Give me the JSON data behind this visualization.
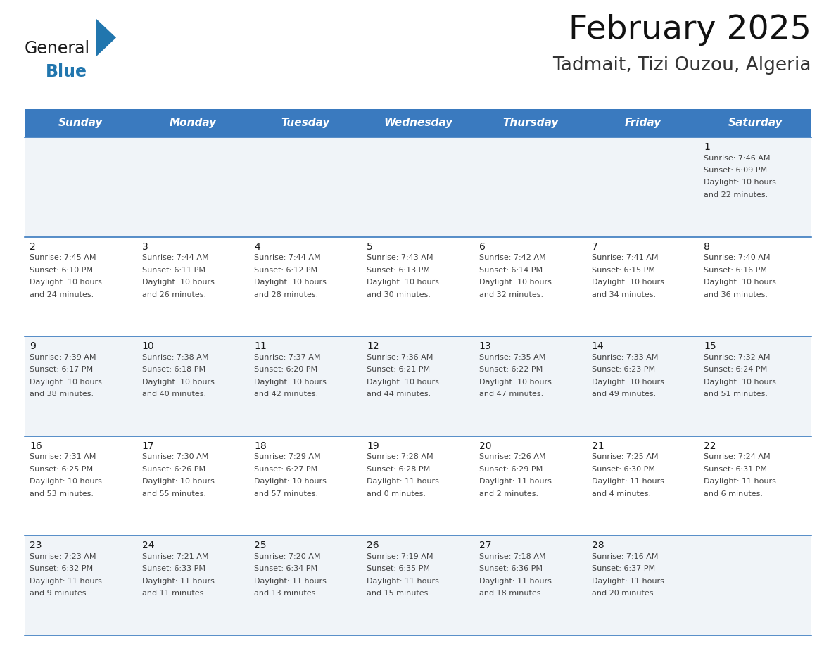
{
  "title": "February 2025",
  "subtitle": "Tadmait, Tizi Ouzou, Algeria",
  "header_color": "#3a7abf",
  "header_text_color": "#ffffff",
  "cell_bg_light": "#f0f4f8",
  "cell_bg_white": "#ffffff",
  "cell_border_color": "#3a7abf",
  "day_names": [
    "Sunday",
    "Monday",
    "Tuesday",
    "Wednesday",
    "Thursday",
    "Friday",
    "Saturday"
  ],
  "days": [
    {
      "day": 1,
      "col": 6,
      "row": 0,
      "sunrise": "7:46 AM",
      "sunset": "6:09 PM",
      "daylight": "10 hours",
      "daylight2": "and 22 minutes."
    },
    {
      "day": 2,
      "col": 0,
      "row": 1,
      "sunrise": "7:45 AM",
      "sunset": "6:10 PM",
      "daylight": "10 hours",
      "daylight2": "and 24 minutes."
    },
    {
      "day": 3,
      "col": 1,
      "row": 1,
      "sunrise": "7:44 AM",
      "sunset": "6:11 PM",
      "daylight": "10 hours",
      "daylight2": "and 26 minutes."
    },
    {
      "day": 4,
      "col": 2,
      "row": 1,
      "sunrise": "7:44 AM",
      "sunset": "6:12 PM",
      "daylight": "10 hours",
      "daylight2": "and 28 minutes."
    },
    {
      "day": 5,
      "col": 3,
      "row": 1,
      "sunrise": "7:43 AM",
      "sunset": "6:13 PM",
      "daylight": "10 hours",
      "daylight2": "and 30 minutes."
    },
    {
      "day": 6,
      "col": 4,
      "row": 1,
      "sunrise": "7:42 AM",
      "sunset": "6:14 PM",
      "daylight": "10 hours",
      "daylight2": "and 32 minutes."
    },
    {
      "day": 7,
      "col": 5,
      "row": 1,
      "sunrise": "7:41 AM",
      "sunset": "6:15 PM",
      "daylight": "10 hours",
      "daylight2": "and 34 minutes."
    },
    {
      "day": 8,
      "col": 6,
      "row": 1,
      "sunrise": "7:40 AM",
      "sunset": "6:16 PM",
      "daylight": "10 hours",
      "daylight2": "and 36 minutes."
    },
    {
      "day": 9,
      "col": 0,
      "row": 2,
      "sunrise": "7:39 AM",
      "sunset": "6:17 PM",
      "daylight": "10 hours",
      "daylight2": "and 38 minutes."
    },
    {
      "day": 10,
      "col": 1,
      "row": 2,
      "sunrise": "7:38 AM",
      "sunset": "6:18 PM",
      "daylight": "10 hours",
      "daylight2": "and 40 minutes."
    },
    {
      "day": 11,
      "col": 2,
      "row": 2,
      "sunrise": "7:37 AM",
      "sunset": "6:20 PM",
      "daylight": "10 hours",
      "daylight2": "and 42 minutes."
    },
    {
      "day": 12,
      "col": 3,
      "row": 2,
      "sunrise": "7:36 AM",
      "sunset": "6:21 PM",
      "daylight": "10 hours",
      "daylight2": "and 44 minutes."
    },
    {
      "day": 13,
      "col": 4,
      "row": 2,
      "sunrise": "7:35 AM",
      "sunset": "6:22 PM",
      "daylight": "10 hours",
      "daylight2": "and 47 minutes."
    },
    {
      "day": 14,
      "col": 5,
      "row": 2,
      "sunrise": "7:33 AM",
      "sunset": "6:23 PM",
      "daylight": "10 hours",
      "daylight2": "and 49 minutes."
    },
    {
      "day": 15,
      "col": 6,
      "row": 2,
      "sunrise": "7:32 AM",
      "sunset": "6:24 PM",
      "daylight": "10 hours",
      "daylight2": "and 51 minutes."
    },
    {
      "day": 16,
      "col": 0,
      "row": 3,
      "sunrise": "7:31 AM",
      "sunset": "6:25 PM",
      "daylight": "10 hours",
      "daylight2": "and 53 minutes."
    },
    {
      "day": 17,
      "col": 1,
      "row": 3,
      "sunrise": "7:30 AM",
      "sunset": "6:26 PM",
      "daylight": "10 hours",
      "daylight2": "and 55 minutes."
    },
    {
      "day": 18,
      "col": 2,
      "row": 3,
      "sunrise": "7:29 AM",
      "sunset": "6:27 PM",
      "daylight": "10 hours",
      "daylight2": "and 57 minutes."
    },
    {
      "day": 19,
      "col": 3,
      "row": 3,
      "sunrise": "7:28 AM",
      "sunset": "6:28 PM",
      "daylight": "11 hours",
      "daylight2": "and 0 minutes."
    },
    {
      "day": 20,
      "col": 4,
      "row": 3,
      "sunrise": "7:26 AM",
      "sunset": "6:29 PM",
      "daylight": "11 hours",
      "daylight2": "and 2 minutes."
    },
    {
      "day": 21,
      "col": 5,
      "row": 3,
      "sunrise": "7:25 AM",
      "sunset": "6:30 PM",
      "daylight": "11 hours",
      "daylight2": "and 4 minutes."
    },
    {
      "day": 22,
      "col": 6,
      "row": 3,
      "sunrise": "7:24 AM",
      "sunset": "6:31 PM",
      "daylight": "11 hours",
      "daylight2": "and 6 minutes."
    },
    {
      "day": 23,
      "col": 0,
      "row": 4,
      "sunrise": "7:23 AM",
      "sunset": "6:32 PM",
      "daylight": "11 hours",
      "daylight2": "and 9 minutes."
    },
    {
      "day": 24,
      "col": 1,
      "row": 4,
      "sunrise": "7:21 AM",
      "sunset": "6:33 PM",
      "daylight": "11 hours",
      "daylight2": "and 11 minutes."
    },
    {
      "day": 25,
      "col": 2,
      "row": 4,
      "sunrise": "7:20 AM",
      "sunset": "6:34 PM",
      "daylight": "11 hours",
      "daylight2": "and 13 minutes."
    },
    {
      "day": 26,
      "col": 3,
      "row": 4,
      "sunrise": "7:19 AM",
      "sunset": "6:35 PM",
      "daylight": "11 hours",
      "daylight2": "and 15 minutes."
    },
    {
      "day": 27,
      "col": 4,
      "row": 4,
      "sunrise": "7:18 AM",
      "sunset": "6:36 PM",
      "daylight": "11 hours",
      "daylight2": "and 18 minutes."
    },
    {
      "day": 28,
      "col": 5,
      "row": 4,
      "sunrise": "7:16 AM",
      "sunset": "6:37 PM",
      "daylight": "11 hours",
      "daylight2": "and 20 minutes."
    }
  ],
  "num_rows": 5,
  "num_cols": 7,
  "logo_general_color": "#1a1a1a",
  "logo_blue_color": "#2176ae",
  "logo_triangle_color": "#2176ae",
  "title_fontsize": 34,
  "subtitle_fontsize": 19,
  "day_header_fontsize": 11,
  "day_num_fontsize": 10,
  "cell_text_fontsize": 8.0
}
